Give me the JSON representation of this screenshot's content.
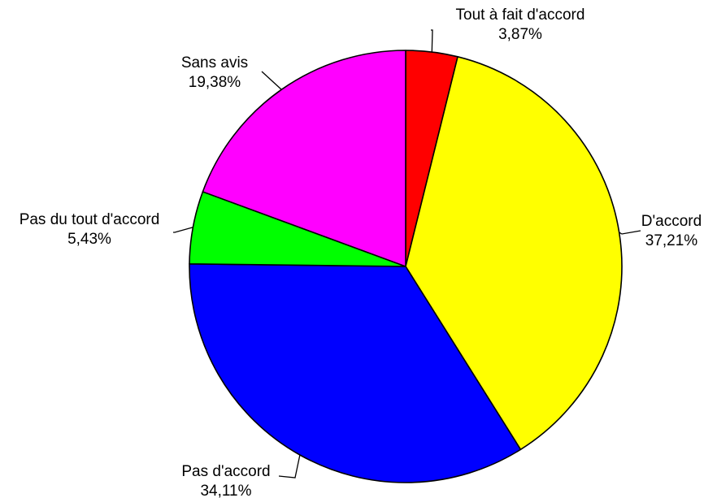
{
  "chart_data": {
    "type": "pie",
    "title": "",
    "start_angle_deg": 0,
    "direction": "clockwise",
    "legend": "none",
    "slices": [
      {
        "label": "Tout à fait d'accord",
        "value": 3.87,
        "value_label": "3,87%",
        "color": "#ff0000"
      },
      {
        "label": "D'accord",
        "value": 37.21,
        "value_label": "37,21%",
        "color": "#ffff00"
      },
      {
        "label": "Pas d'accord",
        "value": 34.11,
        "value_label": "34,11%",
        "color": "#0000ff"
      },
      {
        "label": "Pas du tout d'accord",
        "value": 5.43,
        "value_label": "5,43%",
        "color": "#00ff00"
      },
      {
        "label": "Sans avis",
        "value": 19.38,
        "value_label": "19,38%",
        "color": "#ff00ff"
      }
    ]
  }
}
